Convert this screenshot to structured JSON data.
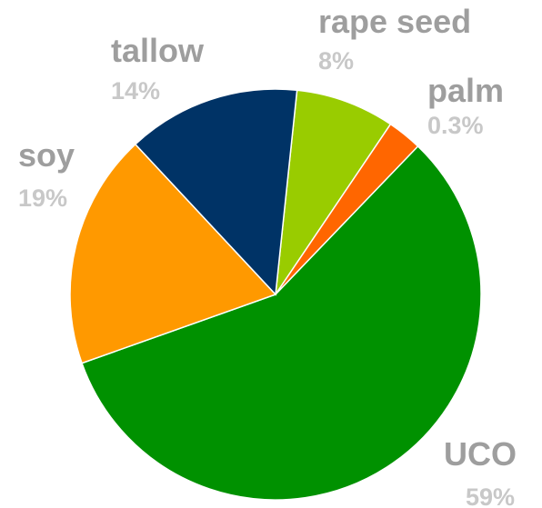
{
  "chart_data": {
    "type": "pie",
    "title": "",
    "slices": [
      {
        "label": "UCO",
        "percent_label": "59%",
        "value": 59,
        "color": "#009100"
      },
      {
        "label": "soy",
        "percent_label": "19%",
        "value": 19,
        "color": "#ff9900"
      },
      {
        "label": "tallow",
        "percent_label": "14%",
        "value": 14,
        "color": "#003366"
      },
      {
        "label": "rape seed",
        "percent_label": "8%",
        "value": 8,
        "color": "#99cc00"
      },
      {
        "label": "palm",
        "percent_label": "0.3%",
        "value": 0.3,
        "color": "#ff6600"
      }
    ],
    "legend": "none",
    "label_color": "#9e9e9e",
    "percent_color": "#c8c8c8"
  }
}
